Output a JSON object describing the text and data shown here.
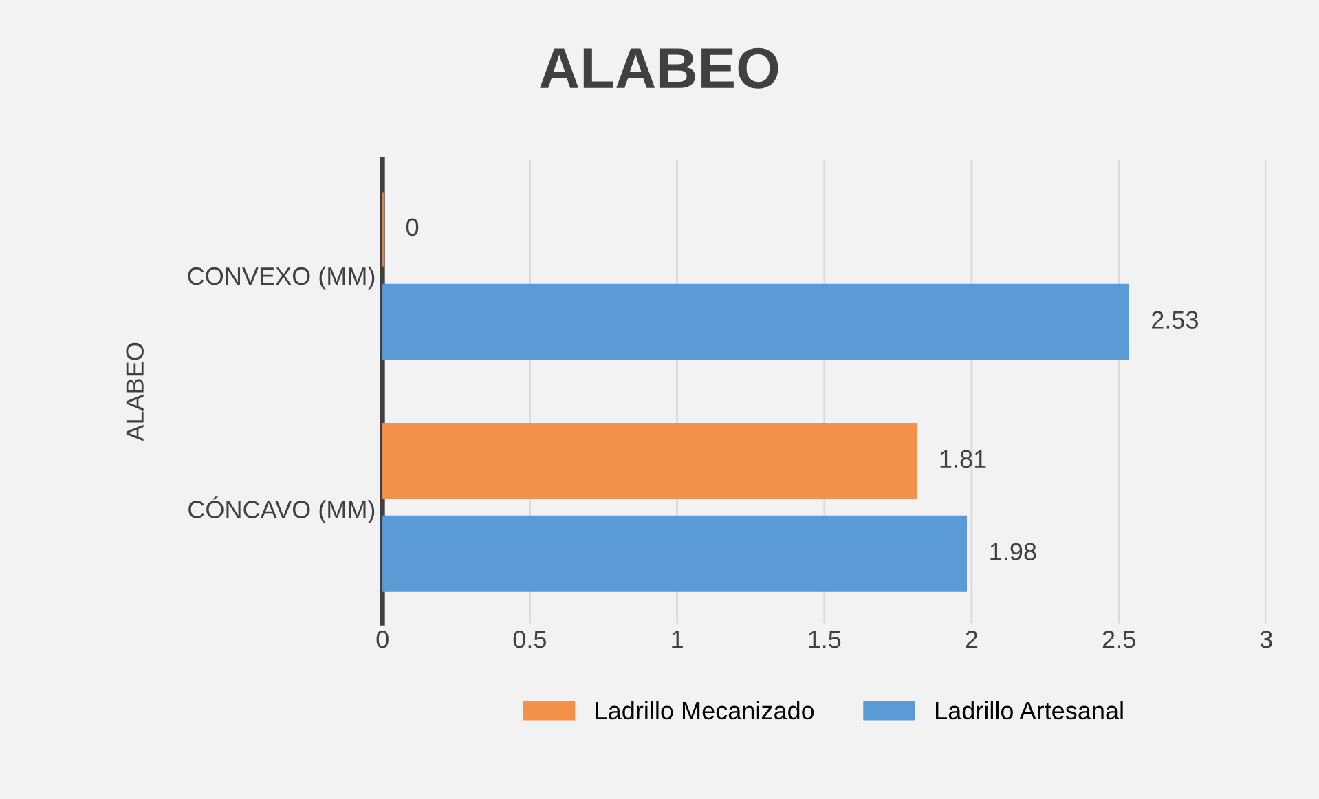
{
  "chart_data": {
    "type": "bar",
    "orientation": "horizontal",
    "title": "ALABEO",
    "ylabel": "ALABEO",
    "categories": [
      "CONVEXO (MM)",
      "CÓNCAVO (MM)"
    ],
    "series": [
      {
        "name": "Ladrillo Mecanizado",
        "color": "#f4914a",
        "values": [
          0,
          1.81
        ]
      },
      {
        "name": "Ladrillo Artesanal",
        "color": "#5b9bd5",
        "values": [
          2.53,
          1.98
        ]
      }
    ],
    "xlim": [
      0,
      3
    ],
    "xticks": [
      0,
      0.5,
      1,
      1.5,
      2,
      2.5,
      3
    ],
    "grid": "x",
    "data_labels": true,
    "legend": "bottom"
  }
}
